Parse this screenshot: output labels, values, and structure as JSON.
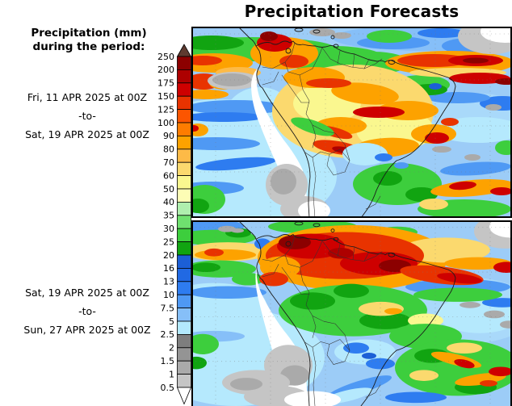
{
  "title": "Precipitation Forecasts",
  "legend": {
    "heading_line1": "Precipitation (mm)",
    "heading_line2": "during the period:"
  },
  "periods": [
    {
      "from": "Fri, 11 APR 2025 at 00Z",
      "sep": "-to-",
      "to": "Sat, 19 APR 2025 at 00Z"
    },
    {
      "from": "Sat, 19 APR 2025 at 00Z",
      "sep": "-to-",
      "to": "Sun, 27 APR 2025 at 00Z"
    }
  ],
  "colorbar": {
    "labels_top_to_bottom": [
      "250",
      "200",
      "175",
      "150",
      "125",
      "100",
      "90",
      "80",
      "70",
      "60",
      "50",
      "40",
      "35",
      "30",
      "25",
      "20",
      "16",
      "13",
      "10",
      "7.5",
      "5",
      "2.5",
      "2",
      "1.5",
      "1",
      "0.5"
    ],
    "segment_colors_top_to_bottom": [
      "#8C0000",
      "#AD0000",
      "#CE0000",
      "#E83300",
      "#FC5500",
      "#FE7C00",
      "#FDA200",
      "#FDBA47",
      "#FBD96E",
      "#FAF78F",
      "#FDFDB5",
      "#AFEFAE",
      "#6FE06F",
      "#3DCE3D",
      "#11A411",
      "#1C5FD6",
      "#2169E3",
      "#2E7CF0",
      "#4F99F4",
      "#86BFF8",
      "#B3E9FD",
      "#7E7E7E",
      "#949494",
      "#AAAAAA",
      "#C5C5C5"
    ],
    "above_max_color": "#5E3B30",
    "below_min_color": "#FFFFFF"
  }
}
